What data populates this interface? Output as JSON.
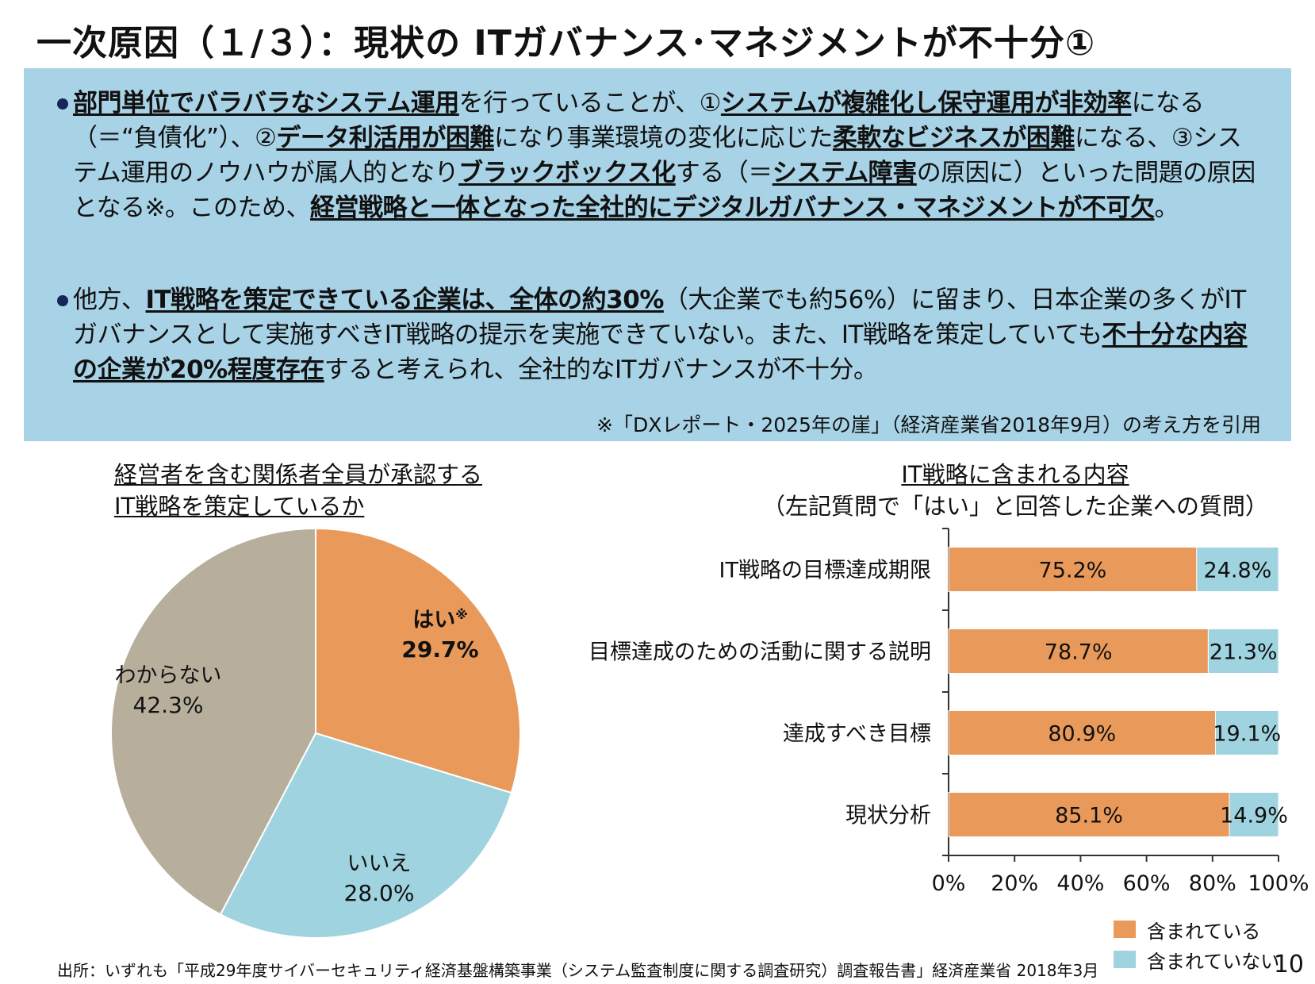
{
  "page": {
    "title": "一次原因（１/３）：現状の ITガバナンス･マネジメントが不十分①",
    "bullet1": [
      {
        "t": "部門単位でバラバラなシステム運用",
        "b": true
      },
      {
        "t": "を行っていることが、①",
        "b": false
      },
      {
        "t": "システムが複雑化し保守運用が非効率",
        "b": true
      },
      {
        "t": "になる（＝“負債化”）、②",
        "b": false
      },
      {
        "t": "データ利活用が困難",
        "b": true
      },
      {
        "t": "になり事業環境の変化に応じた",
        "b": false
      },
      {
        "t": "柔軟なビジネスが困難",
        "b": true
      },
      {
        "t": "になる、③システム運用のノウハウが属人的となり",
        "b": false
      },
      {
        "t": "ブラックボックス化",
        "b": true
      },
      {
        "t": "する（＝",
        "b": false
      },
      {
        "t": "システム障害",
        "b": true
      },
      {
        "t": "の原因に）といった問題の原因となる※。このため、",
        "b": false
      },
      {
        "t": "経営戦略と一体となった全社的にデジタルガバナンス・マネジメントが不可欠",
        "b": true
      },
      {
        "t": "。",
        "b": false
      }
    ],
    "bullet2": [
      {
        "t": "他方、",
        "b": false
      },
      {
        "t": "IT戦略を策定できている企業は、全体の約30%",
        "b": true
      },
      {
        "t": "（大企業でも約56%）に留まり、日本企業の多くがITガバナンスとして実施すべきIT戦略の提示を実施できていない。また、IT戦略を策定していても",
        "b": false
      },
      {
        "t": "不十分な内容の企業が20%程度存在",
        "b": true
      },
      {
        "t": "すると考えられ、全社的なITガバナンスが不十分。",
        "b": false
      }
    ],
    "note": "※「DXレポート・2025年の崖」（経済産業省2018年9月）の考え方を引用",
    "source": "出所：いずれも「平成29年度サイバーセキュリティ経済基盤構築事業（システム監査制度に関する調査研究）調査報告書」経済産業省 2018年3月",
    "page_number": "10"
  },
  "chart_data": [
    {
      "type": "pie",
      "title_lines": [
        "経営者を含む関係者全員が承認する",
        "IT戦略を策定しているか"
      ],
      "slices": [
        {
          "label": "はい",
          "note": "※",
          "value": 29.7,
          "value_label": "29.7%",
          "color": "#e99a5a",
          "bold": true
        },
        {
          "label": "いいえ",
          "note": "",
          "value": 28.0,
          "value_label": "28.0%",
          "color": "#9fd3df",
          "bold": false
        },
        {
          "label": "わからない",
          "note": "",
          "value": 42.3,
          "value_label": "42.3%",
          "color": "#b7af9c",
          "bold": false
        }
      ]
    },
    {
      "type": "bar",
      "orientation": "horizontal",
      "stacked": true,
      "title": "IT戦略に含まれる内容",
      "subtitle": "（左記質問で「はい」と回答した企業への質問）",
      "categories": [
        "IT戦略の目標達成期限",
        "目標達成のための活動に関する説明",
        "達成すべき目標",
        "現状分析"
      ],
      "series": [
        {
          "name": "含まれている",
          "color": "#e99a5a",
          "values": [
            75.2,
            78.7,
            80.9,
            85.1
          ],
          "labels": [
            "75.2%",
            "78.7%",
            "80.9%",
            "85.1%"
          ]
        },
        {
          "name": "含まれていない",
          "color": "#9fd3df",
          "values": [
            24.8,
            21.3,
            19.1,
            14.9
          ],
          "labels": [
            "24.8%",
            "21.3%",
            "19.1%",
            "14.9%"
          ]
        }
      ],
      "xlim": [
        0,
        100
      ],
      "xticks": [
        "0%",
        "20%",
        "40%",
        "60%",
        "80%",
        "100%"
      ],
      "legend_position": "bottom-right"
    }
  ]
}
